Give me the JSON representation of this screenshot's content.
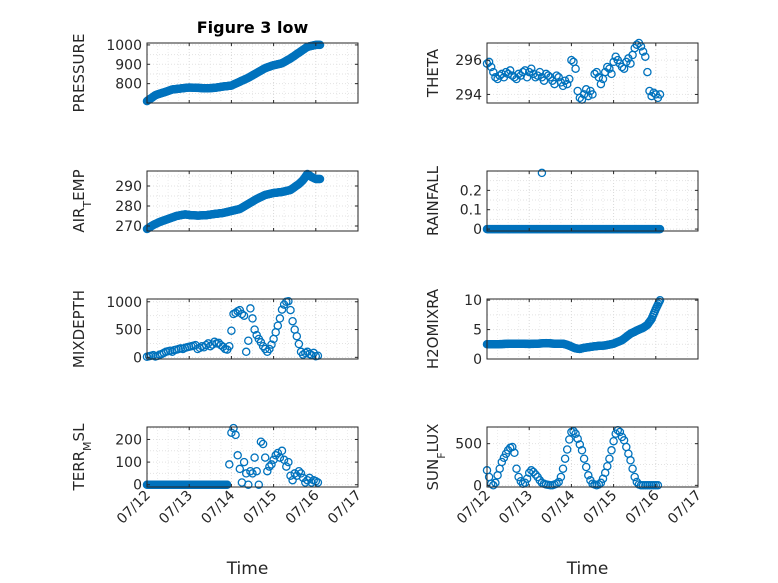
{
  "chart_data": [
    {
      "type": "scatter",
      "title": "Figure 3 low",
      "ylabel": "PRESSURE",
      "ylabel_sub": "",
      "xlabel": "",
      "ylim": [
        700,
        1010
      ],
      "yticks": [
        800,
        900,
        1000
      ],
      "xlim_days": [
        0,
        5
      ],
      "xtick_labels": [
        "07/12",
        "07/13",
        "07/14",
        "07/15",
        "07/16",
        "07/17"
      ],
      "show_xtick_labels": false,
      "grid": true,
      "color": "#0072BD",
      "series": [
        {
          "kind": "curve",
          "x": [
            0,
            0.1,
            0.2,
            0.3,
            0.45,
            0.6,
            0.8,
            1.0,
            1.2,
            1.4,
            1.6,
            1.8,
            2.0,
            2.2,
            2.4,
            2.6,
            2.8,
            3.0,
            3.2,
            3.4,
            3.6,
            3.8,
            4.0,
            4.1
          ],
          "y": [
            710,
            725,
            740,
            748,
            758,
            770,
            775,
            780,
            778,
            776,
            778,
            785,
            790,
            810,
            830,
            855,
            880,
            895,
            905,
            930,
            960,
            990,
            1000,
            1000
          ],
          "step": 0.02
        }
      ]
    },
    {
      "type": "scatter",
      "title": "",
      "ylabel": "THETA",
      "ylabel_sub": "",
      "xlabel": "",
      "ylim": [
        293.5,
        297
      ],
      "yticks": [
        294,
        296
      ],
      "xlim_days": [
        0,
        5
      ],
      "xtick_labels": [
        "07/12",
        "07/13",
        "07/14",
        "07/15",
        "07/16",
        "07/17"
      ],
      "show_xtick_labels": false,
      "grid": true,
      "color": "#0072BD",
      "series": [
        {
          "kind": "points",
          "x": [
            0.0,
            0.05,
            0.1,
            0.15,
            0.2,
            0.25,
            0.3,
            0.35,
            0.4,
            0.45,
            0.5,
            0.55,
            0.6,
            0.65,
            0.7,
            0.75,
            0.8,
            0.85,
            0.9,
            0.95,
            1.0,
            1.05,
            1.1,
            1.15,
            1.2,
            1.25,
            1.3,
            1.35,
            1.4,
            1.45,
            1.5,
            1.55,
            1.6,
            1.65,
            1.7,
            1.75,
            1.8,
            1.85,
            1.9,
            1.95,
            2.0,
            2.05,
            2.1,
            2.15,
            2.2,
            2.25,
            2.3,
            2.35,
            2.4,
            2.45,
            2.5,
            2.55,
            2.6,
            2.65,
            2.7,
            2.75,
            2.8,
            2.85,
            2.9,
            2.95,
            3.0,
            3.05,
            3.1,
            3.15,
            3.2,
            3.25,
            3.3,
            3.35,
            3.4,
            3.45,
            3.5,
            3.55,
            3.6,
            3.65,
            3.7,
            3.75,
            3.8,
            3.85,
            3.9,
            3.95,
            4.0,
            4.05,
            4.1
          ],
          "y": [
            295.8,
            295.9,
            295.6,
            295.3,
            295.0,
            294.9,
            295.1,
            295.2,
            295.0,
            295.3,
            295.2,
            295.4,
            295.1,
            295.0,
            294.9,
            295.2,
            295.1,
            295.3,
            295.4,
            295.0,
            295.3,
            295.5,
            295.2,
            295.0,
            295.1,
            295.3,
            295.0,
            294.8,
            295.2,
            295.1,
            295.0,
            294.8,
            294.6,
            295.1,
            295.0,
            294.7,
            294.5,
            294.8,
            294.6,
            294.9,
            296.0,
            295.9,
            295.5,
            294.2,
            293.8,
            293.7,
            294.0,
            294.3,
            293.9,
            294.2,
            294.0,
            295.2,
            295.3,
            295.0,
            294.6,
            294.9,
            295.3,
            295.6,
            295.5,
            295.2,
            295.9,
            296.2,
            296.0,
            295.8,
            295.6,
            295.5,
            295.9,
            296.1,
            295.8,
            296.3,
            296.7,
            296.9,
            297.0,
            296.8,
            296.5,
            296.2,
            295.3,
            294.2,
            293.9,
            294.1,
            294.0,
            293.8,
            294.0
          ]
        }
      ]
    },
    {
      "type": "scatter",
      "title": "",
      "ylabel": "AIR",
      "ylabel_sub": "T",
      "ylabel_tail": "EMP",
      "xlabel": "",
      "ylim": [
        267.5,
        297.5
      ],
      "yticks": [
        270,
        280,
        290
      ],
      "xlim_days": [
        0,
        5
      ],
      "xtick_labels": [
        "07/12",
        "07/13",
        "07/14",
        "07/15",
        "07/16",
        "07/17"
      ],
      "show_xtick_labels": false,
      "grid": true,
      "color": "#0072BD",
      "series": [
        {
          "kind": "curve",
          "x": [
            0,
            0.15,
            0.3,
            0.5,
            0.7,
            0.9,
            1.0,
            1.2,
            1.4,
            1.6,
            1.8,
            2.0,
            2.2,
            2.4,
            2.6,
            2.8,
            3.0,
            3.2,
            3.4,
            3.5,
            3.6,
            3.7,
            3.8,
            3.9,
            4.0,
            4.1
          ],
          "y": [
            268.5,
            270.5,
            272.0,
            273.5,
            275.0,
            275.8,
            275.5,
            275.2,
            275.4,
            276.0,
            276.5,
            277.5,
            278.5,
            281.0,
            283.5,
            285.5,
            286.5,
            287.0,
            288.0,
            289.5,
            291.0,
            293.0,
            296.0,
            294.5,
            293.5,
            293.5
          ],
          "step": 0.02
        }
      ]
    },
    {
      "type": "scatter",
      "title": "",
      "ylabel": "RAINFALL",
      "ylabel_sub": "",
      "xlabel": "",
      "ylim": [
        -0.01,
        0.3
      ],
      "yticks": [
        0,
        0.1,
        0.2
      ],
      "ytick_labels": [
        "0",
        "0.1",
        "0.2"
      ],
      "xlim_days": [
        0,
        5
      ],
      "xtick_labels": [
        "07/12",
        "07/13",
        "07/14",
        "07/15",
        "07/16",
        "07/17"
      ],
      "show_xtick_labels": false,
      "grid": true,
      "color": "#0072BD",
      "series": [
        {
          "kind": "curve",
          "x": [
            0,
            4.1
          ],
          "y": [
            0,
            0
          ],
          "step": 0.02
        },
        {
          "kind": "points",
          "x": [
            1.3
          ],
          "y": [
            0.29
          ]
        }
      ]
    },
    {
      "type": "scatter",
      "title": "",
      "ylabel": "MIXDEPTH",
      "ylabel_sub": "",
      "xlabel": "",
      "ylim": [
        -30,
        1050
      ],
      "yticks": [
        0,
        500,
        1000
      ],
      "xlim_days": [
        0,
        5
      ],
      "xtick_labels": [
        "07/12",
        "07/13",
        "07/14",
        "07/15",
        "07/16",
        "07/17"
      ],
      "show_xtick_labels": false,
      "grid": true,
      "color": "#0072BD",
      "series": [
        {
          "kind": "points",
          "x": [
            0.0,
            0.05,
            0.1,
            0.15,
            0.2,
            0.25,
            0.3,
            0.35,
            0.4,
            0.45,
            0.5,
            0.55,
            0.6,
            0.65,
            0.7,
            0.75,
            0.8,
            0.85,
            0.9,
            0.95,
            1.0,
            1.05,
            1.1,
            1.15,
            1.2,
            1.25,
            1.3,
            1.35,
            1.4,
            1.45,
            1.5,
            1.55,
            1.6,
            1.65,
            1.7,
            1.75,
            1.8,
            1.85,
            1.9,
            1.95,
            2.0,
            2.05,
            2.1,
            2.15,
            2.2,
            2.25,
            2.3,
            2.35,
            2.4,
            2.45,
            2.5,
            2.55,
            2.6,
            2.65,
            2.7,
            2.75,
            2.8,
            2.85,
            2.9,
            2.95,
            3.0,
            3.05,
            3.1,
            3.15,
            3.2,
            3.25,
            3.3,
            3.35,
            3.4,
            3.45,
            3.5,
            3.55,
            3.6,
            3.65,
            3.7,
            3.75,
            3.8,
            3.85,
            3.9,
            3.95,
            4.0,
            4.05
          ],
          "y": [
            10,
            20,
            30,
            40,
            15,
            25,
            50,
            60,
            80,
            100,
            110,
            120,
            100,
            130,
            140,
            150,
            160,
            150,
            170,
            180,
            190,
            200,
            210,
            220,
            150,
            170,
            200,
            180,
            220,
            250,
            200,
            230,
            280,
            250,
            260,
            220,
            190,
            150,
            140,
            200,
            480,
            780,
            800,
            830,
            850,
            780,
            750,
            100,
            300,
            880,
            700,
            500,
            400,
            330,
            270,
            200,
            150,
            100,
            150,
            230,
            330,
            450,
            570,
            700,
            860,
            950,
            1000,
            1010,
            850,
            650,
            500,
            380,
            240,
            100,
            50,
            80,
            100,
            60,
            40,
            80,
            20,
            30
          ]
        }
      ]
    },
    {
      "type": "scatter",
      "title": "",
      "ylabel": "H2OMIXRA",
      "ylabel_sub": "",
      "xlabel": "",
      "ylim": [
        0,
        10.2
      ],
      "yticks": [
        0,
        5,
        10
      ],
      "xlim_days": [
        0,
        5
      ],
      "xtick_labels": [
        "07/12",
        "07/13",
        "07/14",
        "07/15",
        "07/16",
        "07/17"
      ],
      "show_xtick_labels": false,
      "grid": true,
      "color": "#0072BD",
      "series": [
        {
          "kind": "curve",
          "x": [
            0,
            0.2,
            0.4,
            0.6,
            0.8,
            1.0,
            1.2,
            1.4,
            1.6,
            1.8,
            1.9,
            2.0,
            2.1,
            2.2,
            2.3,
            2.4,
            2.5,
            2.6,
            2.8,
            3.0,
            3.2,
            3.4,
            3.6,
            3.7,
            3.8,
            3.9,
            4.0,
            4.1
          ],
          "y": [
            2.5,
            2.5,
            2.55,
            2.6,
            2.6,
            2.55,
            2.6,
            2.7,
            2.6,
            2.6,
            2.4,
            2.1,
            1.8,
            1.7,
            1.9,
            2.0,
            2.1,
            2.2,
            2.3,
            2.6,
            3.2,
            4.3,
            5.0,
            5.3,
            5.8,
            6.8,
            8.5,
            10.0
          ],
          "step": 0.02
        }
      ]
    },
    {
      "type": "scatter",
      "title": "",
      "ylabel": "TERR",
      "ylabel_sub": "M",
      "ylabel_tail": "SL",
      "xlabel": "Time",
      "ylim": [
        -10,
        255
      ],
      "yticks": [
        0,
        100,
        200
      ],
      "xlim_days": [
        0,
        5
      ],
      "xtick_labels": [
        "07/12",
        "07/13",
        "07/14",
        "07/15",
        "07/16",
        "07/17"
      ],
      "show_xtick_labels": true,
      "grid": true,
      "color": "#0072BD",
      "series": [
        {
          "kind": "curve",
          "x": [
            0,
            1.9
          ],
          "y": [
            0,
            0
          ],
          "step": 0.02
        },
        {
          "kind": "points",
          "x": [
            1.95,
            2.0,
            2.05,
            2.1,
            2.15,
            2.2,
            2.25,
            2.3,
            2.35,
            2.4,
            2.45,
            2.5,
            2.55,
            2.6,
            2.65,
            2.7,
            2.75,
            2.8,
            2.85,
            2.9,
            2.95,
            3.0,
            3.05,
            3.1,
            3.15,
            3.2,
            3.25,
            3.3,
            3.35,
            3.4,
            3.45,
            3.5,
            3.55,
            3.6,
            3.65,
            3.7,
            3.75,
            3.8,
            3.85,
            3.9,
            3.95,
            4.0,
            4.05
          ],
          "y": [
            90,
            230,
            250,
            220,
            130,
            70,
            10,
            100,
            50,
            0,
            60,
            50,
            120,
            60,
            0,
            190,
            180,
            120,
            60,
            80,
            90,
            110,
            130,
            140,
            120,
            150,
            110,
            80,
            100,
            40,
            20,
            50,
            40,
            60,
            50,
            30,
            10,
            20,
            30,
            10,
            20,
            15,
            10
          ]
        }
      ]
    },
    {
      "type": "scatter",
      "title": "",
      "ylabel": "SUN",
      "ylabel_sub": "F",
      "ylabel_tail": "LUX",
      "xlabel": "Time",
      "ylim": [
        -20,
        700
      ],
      "yticks": [
        0,
        500
      ],
      "xlim_days": [
        0,
        5
      ],
      "xtick_labels": [
        "07/12",
        "07/13",
        "07/14",
        "07/15",
        "07/16",
        "07/17"
      ],
      "show_xtick_labels": true,
      "grid": true,
      "color": "#0072BD",
      "series": [
        {
          "kind": "points",
          "x": [
            0.0,
            0.05,
            0.1,
            0.15,
            0.2,
            0.25,
            0.3,
            0.35,
            0.4,
            0.45,
            0.5,
            0.55,
            0.6,
            0.65,
            0.7,
            0.75,
            0.8,
            0.85,
            0.9,
            0.95,
            1.0,
            1.05,
            1.1,
            1.15,
            1.2,
            1.25,
            1.3,
            1.35,
            1.4,
            1.45,
            1.5,
            1.55,
            1.6,
            1.65,
            1.7,
            1.75,
            1.8,
            1.85,
            1.9,
            1.95,
            2.0,
            2.05,
            2.1,
            2.15,
            2.2,
            2.25,
            2.3,
            2.35,
            2.4,
            2.45,
            2.5,
            2.55,
            2.6,
            2.65,
            2.7,
            2.75,
            2.8,
            2.85,
            2.9,
            2.95,
            3.0,
            3.05,
            3.1,
            3.15,
            3.2,
            3.25,
            3.3,
            3.35,
            3.4,
            3.45,
            3.5,
            3.55,
            3.6,
            3.65,
            3.7,
            3.75,
            3.8,
            3.85,
            3.9,
            3.95,
            4.0,
            4.05
          ],
          "y": [
            180,
            100,
            20,
            0,
            30,
            120,
            200,
            280,
            330,
            380,
            420,
            450,
            460,
            390,
            200,
            100,
            50,
            20,
            30,
            80,
            150,
            180,
            160,
            130,
            100,
            60,
            30,
            20,
            10,
            5,
            0,
            0,
            10,
            20,
            40,
            100,
            200,
            320,
            430,
            550,
            640,
            650,
            620,
            560,
            490,
            420,
            320,
            220,
            120,
            60,
            20,
            10,
            0,
            10,
            30,
            80,
            150,
            230,
            320,
            420,
            530,
            620,
            660,
            640,
            580,
            540,
            460,
            380,
            300,
            200,
            100,
            40,
            10,
            0,
            0,
            0,
            0,
            0,
            0,
            0,
            0,
            0
          ]
        }
      ]
    }
  ]
}
